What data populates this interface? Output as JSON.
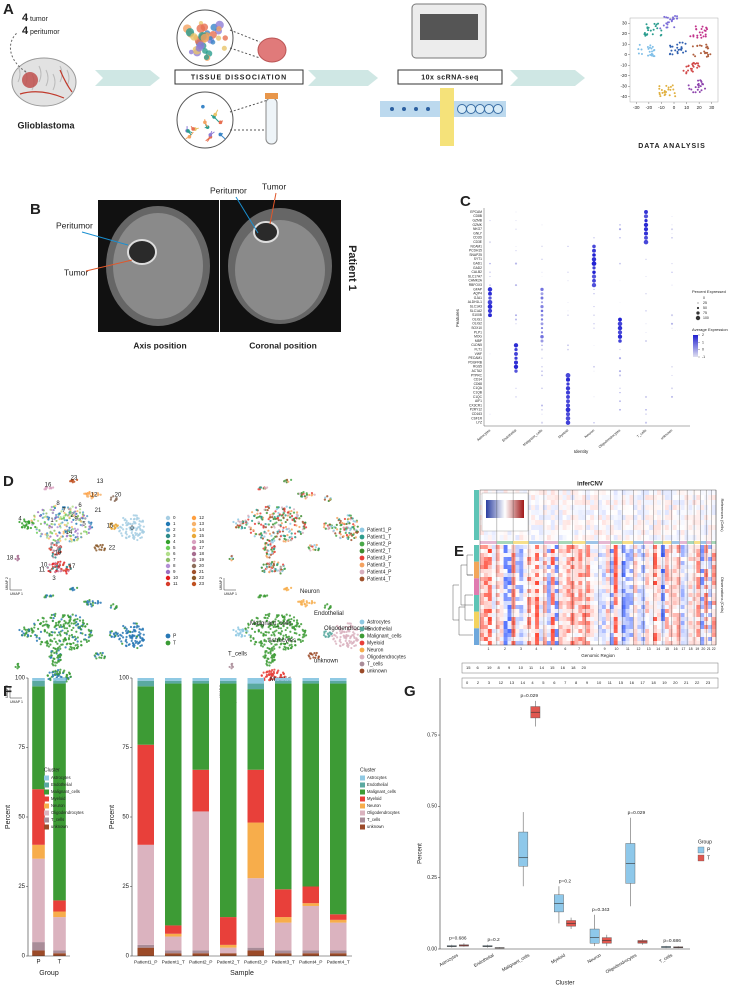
{
  "panel_a": {
    "label": "A",
    "tumor_count": "4",
    "tumor": "tumor",
    "peritumor_count": "4",
    "peritumor": "peritumor",
    "disease": "Glioblastoma",
    "step1": "TISSUE DISSOCIATION",
    "step2": "10x scRNA-seq",
    "step3": "DATA ANALYSIS",
    "tsne": {
      "xlim": [
        -35,
        35
      ],
      "ylim": [
        -45,
        35
      ],
      "xticks": [
        -30,
        -20,
        -10,
        0,
        10,
        20,
        30
      ],
      "yticks": [
        30,
        20,
        10,
        0,
        -10,
        -20,
        -30,
        -40
      ]
    }
  },
  "panel_b": {
    "label": "B",
    "axis": {
      "peritumor": "Peritumor",
      "tumor": "Tumor"
    },
    "coronal": {
      "peritumor": "Peritumor",
      "tumor": "Tumor"
    },
    "patient": "Patient 1",
    "captions": [
      "Axis position",
      "Coronal position"
    ]
  },
  "panel_c": {
    "label": "C",
    "features": [
      "EPCAM",
      "CD8B",
      "GZMB",
      "GZMK",
      "NKG7",
      "GNLY",
      "CD3D",
      "CD3E",
      "NCAM1",
      "PCDH15",
      "SNAP25",
      "SYT1",
      "GAD1",
      "GAD2",
      "CALB2",
      "SLC17A7",
      "CAMK2A",
      "RBFOX3",
      "GFAP",
      "AQP4",
      "GJA1",
      "ALDH1L1",
      "SLC1A3",
      "SLC1A2",
      "S100B",
      "OLIG1",
      "OLIG2",
      "SOX10",
      "PLP1",
      "MOG",
      "MBP",
      "CLDN5",
      "FLT1",
      "VWF",
      "PECAM1",
      "PDGFRB",
      "RGS5",
      "ACTA2",
      "PTPRC",
      "CD14",
      "CD68",
      "C1QA",
      "C1QB",
      "C1QC",
      "AIF1",
      "CX3CR1",
      "P2RY12",
      "CD163",
      "CSF1R",
      "LYZ"
    ],
    "identities": [
      "Astrocytes",
      "Endothelial",
      "Malignant_cells",
      "Myeloid",
      "Neuron",
      "Oligodendrocytes",
      "T_cells",
      "unknown"
    ],
    "x_title": "Identity",
    "y_title": "Features",
    "size_legend_title": "Percent Expressed",
    "size_ticks": [
      0,
      25,
      50,
      75,
      100
    ],
    "color_legend_title": "Average Expression",
    "color_ticks": [
      2,
      1,
      0,
      -1
    ]
  },
  "panel_d": {
    "label": "D",
    "x_title": "UMAP 1",
    "y_title": "UMAP 2",
    "clusters": [
      {
        "name": "0",
        "color": "#a6cee3"
      },
      {
        "name": "1",
        "color": "#1f78b4"
      },
      {
        "name": "2",
        "color": "#5aa0c8"
      },
      {
        "name": "3",
        "color": "#2e8b8b"
      },
      {
        "name": "4",
        "color": "#33a02c"
      },
      {
        "name": "5",
        "color": "#6ccf5a"
      },
      {
        "name": "6",
        "color": "#b2df8a"
      },
      {
        "name": "7",
        "color": "#8fbf6a"
      },
      {
        "name": "8",
        "color": "#b38fd6"
      },
      {
        "name": "9",
        "color": "#9a6fc2"
      },
      {
        "name": "10",
        "color": "#e31a1c"
      },
      {
        "name": "11",
        "color": "#d73b2a"
      },
      {
        "name": "12",
        "color": "#ff9f40"
      },
      {
        "name": "13",
        "color": "#f6b26b"
      },
      {
        "name": "14",
        "color": "#ffbf6b"
      },
      {
        "name": "15",
        "color": "#e8a838"
      },
      {
        "name": "16",
        "color": "#d9a0c0"
      },
      {
        "name": "17",
        "color": "#c97fa5"
      },
      {
        "name": "18",
        "color": "#a66c8f"
      },
      {
        "name": "19",
        "color": "#b5889b"
      },
      {
        "name": "20",
        "color": "#8c6d5a"
      },
      {
        "name": "21",
        "color": "#a0522d"
      },
      {
        "name": "22",
        "color": "#8b5a2b"
      },
      {
        "name": "23",
        "color": "#c05020"
      }
    ],
    "samples": [
      {
        "name": "Patient1_P",
        "color": "#8fc9e3"
      },
      {
        "name": "Patient1_T",
        "color": "#2e9c8c"
      },
      {
        "name": "Patient2_P",
        "color": "#4aa84a"
      },
      {
        "name": "Patient2_T",
        "color": "#3d8b2e"
      },
      {
        "name": "Patient3_P",
        "color": "#e8403a"
      },
      {
        "name": "Patient3_T",
        "color": "#f4a261"
      },
      {
        "name": "Patient4_P",
        "color": "#d8b0c0"
      },
      {
        "name": "Patient4_T",
        "color": "#a0522d"
      }
    ],
    "groups": [
      {
        "name": "P",
        "color": "#2878b5"
      },
      {
        "name": "T",
        "color": "#3a9b35"
      }
    ],
    "celltypes": [
      {
        "name": "Astrocytes",
        "color": "#8fc9e3"
      },
      {
        "name": "Endothelial",
        "color": "#5aa9a0"
      },
      {
        "name": "Malignant_cells",
        "color": "#3d9b35"
      },
      {
        "name": "Myeloid",
        "color": "#e8403a"
      },
      {
        "name": "Neuron",
        "color": "#f7ad4b"
      },
      {
        "name": "Oligodendrocytes",
        "color": "#dbb3bf"
      },
      {
        "name": "T_cells",
        "color": "#a98c98"
      },
      {
        "name": "unknown",
        "color": "#9b4a28"
      }
    ]
  },
  "panel_e": {
    "label": "E",
    "title": "inferCNV",
    "ref_label": "References (Cells)",
    "obs_label": "Observations (Cells)",
    "x_title": "Genomic Region",
    "chromosomes": [
      "1",
      "2",
      "3",
      "4",
      "5",
      "6",
      "7",
      "8",
      "9",
      "10",
      "11",
      "12",
      "13",
      "14",
      "15",
      "16",
      "17",
      "18",
      "19",
      "20",
      "21",
      "22"
    ],
    "ref_key": [
      "15",
      "6",
      "19",
      "8",
      "9",
      "10",
      "11",
      "14",
      "15",
      "16",
      "18",
      "20"
    ],
    "obs_key": [
      "0",
      "2",
      "3",
      "12",
      "13",
      "14",
      "4",
      "5",
      "6",
      "7",
      "8",
      "9",
      "10",
      "11",
      "15",
      "16",
      "17",
      "18",
      "19",
      "20",
      "21",
      "22",
      "23"
    ]
  },
  "panel_f": {
    "label": "F"
  },
  "panel_g": {
    "label": "G"
  },
  "chart_data": [
    {
      "type": "stacked_bar",
      "categories": [
        "P",
        "T"
      ],
      "x_title": "Group",
      "y_title": "Percent",
      "legend_title": "Cluster",
      "ylim": [
        0,
        100
      ],
      "yticks": [
        0,
        25,
        50,
        75,
        100
      ],
      "series": [
        {
          "name": "Astrocytes",
          "color": "#8fc9e3",
          "values": [
            1,
            1
          ]
        },
        {
          "name": "Endothelial",
          "color": "#5aa9a0",
          "values": [
            2,
            1
          ]
        },
        {
          "name": "Malignant_cells",
          "color": "#3d9b35",
          "values": [
            37,
            78
          ]
        },
        {
          "name": "Myeloid",
          "color": "#e8403a",
          "values": [
            20,
            4
          ]
        },
        {
          "name": "Neuron",
          "color": "#f7ad4b",
          "values": [
            5,
            2
          ]
        },
        {
          "name": "Oligodendrocytes",
          "color": "#dbb3bf",
          "values": [
            30,
            12
          ]
        },
        {
          "name": "T_cells",
          "color": "#a98c98",
          "values": [
            3,
            1
          ]
        },
        {
          "name": "unknown",
          "color": "#9b4a28",
          "values": [
            2,
            1
          ]
        }
      ]
    },
    {
      "type": "stacked_bar",
      "categories": [
        "Patient1_P",
        "Patient1_T",
        "Patient2_P",
        "Patient2_T",
        "Patient3_P",
        "Patient3_T",
        "Patient4_P",
        "Patient4_T"
      ],
      "x_title": "Sample",
      "y_title": "Percent",
      "legend_title": "Cluster",
      "ylim": [
        0,
        100
      ],
      "yticks": [
        0,
        25,
        50,
        75,
        100
      ],
      "series": [
        {
          "name": "Astrocytes",
          "color": "#8fc9e3",
          "values": [
            1,
            1,
            1,
            1,
            2,
            1,
            1,
            1
          ]
        },
        {
          "name": "Endothelial",
          "color": "#5aa9a0",
          "values": [
            2,
            1,
            1,
            1,
            2,
            1,
            1,
            1
          ]
        },
        {
          "name": "Malignant_cells",
          "color": "#3d9b35",
          "values": [
            21,
            87,
            31,
            84,
            29,
            74,
            73,
            83
          ]
        },
        {
          "name": "Myeloid",
          "color": "#e8403a",
          "values": [
            36,
            3,
            15,
            10,
            19,
            10,
            6,
            2
          ]
        },
        {
          "name": "Neuron",
          "color": "#f7ad4b",
          "values": [
            0,
            1,
            0,
            1,
            20,
            2,
            1,
            1
          ]
        },
        {
          "name": "Oligodendrocytes",
          "color": "#dbb3bf",
          "values": [
            36,
            5,
            50,
            2,
            25,
            10,
            16,
            10
          ]
        },
        {
          "name": "T_cells",
          "color": "#a98c98",
          "values": [
            1,
            1,
            1,
            0,
            1,
            1,
            1,
            1
          ]
        },
        {
          "name": "unknown",
          "color": "#9b4a28",
          "values": [
            3,
            1,
            1,
            1,
            2,
            1,
            1,
            1
          ]
        }
      ]
    },
    {
      "type": "box",
      "categories": [
        "Astrocytes",
        "Endothelial",
        "Malignant_cells",
        "Myeloid",
        "Neuron",
        "Oligodendrocytes",
        "T_cells"
      ],
      "x_title": "Cluster",
      "y_title": "Percent",
      "legend_title": "Group",
      "ylim": [
        0,
        0.95
      ],
      "yticks": [
        {
          "value": 0,
          "label": "0.00"
        },
        {
          "value": 0.25,
          "label": "0.25"
        },
        {
          "value": 0.5,
          "label": "0.50"
        },
        {
          "value": 0.75,
          "label": "0.75"
        }
      ],
      "annotations": [
        "p=0.686",
        "p=0.2",
        "p=0.029",
        "p=0.2",
        "p=0.343",
        "p=0.029",
        "p=0.686"
      ],
      "series": [
        {
          "name": "P",
          "color": "#8ec8ea",
          "values": [
            [
              0.005,
              0.008,
              0.01,
              0.012,
              0.015
            ],
            [
              0.005,
              0.008,
              0.01,
              0.012,
              0.015
            ],
            [
              0.22,
              0.29,
              0.32,
              0.41,
              0.48
            ],
            [
              0.09,
              0.13,
              0.16,
              0.19,
              0.22
            ],
            [
              0.01,
              0.02,
              0.04,
              0.07,
              0.12
            ],
            [
              0.15,
              0.23,
              0.3,
              0.37,
              0.46
            ],
            [
              0.003,
              0.005,
              0.007,
              0.009,
              0.011
            ]
          ]
        },
        {
          "name": "T",
          "color": "#e0574f",
          "values": [
            [
              0.008,
              0.01,
              0.012,
              0.015,
              0.02
            ],
            [
              0.002,
              0.003,
              0.004,
              0.005,
              0.006
            ],
            [
              0.78,
              0.81,
              0.83,
              0.85,
              0.87
            ],
            [
              0.07,
              0.08,
              0.09,
              0.1,
              0.11
            ],
            [
              0.01,
              0.02,
              0.03,
              0.04,
              0.05
            ],
            [
              0.015,
              0.02,
              0.025,
              0.03,
              0.035
            ],
            [
              0.003,
              0.004,
              0.006,
              0.008,
              0.01
            ]
          ]
        }
      ]
    }
  ]
}
